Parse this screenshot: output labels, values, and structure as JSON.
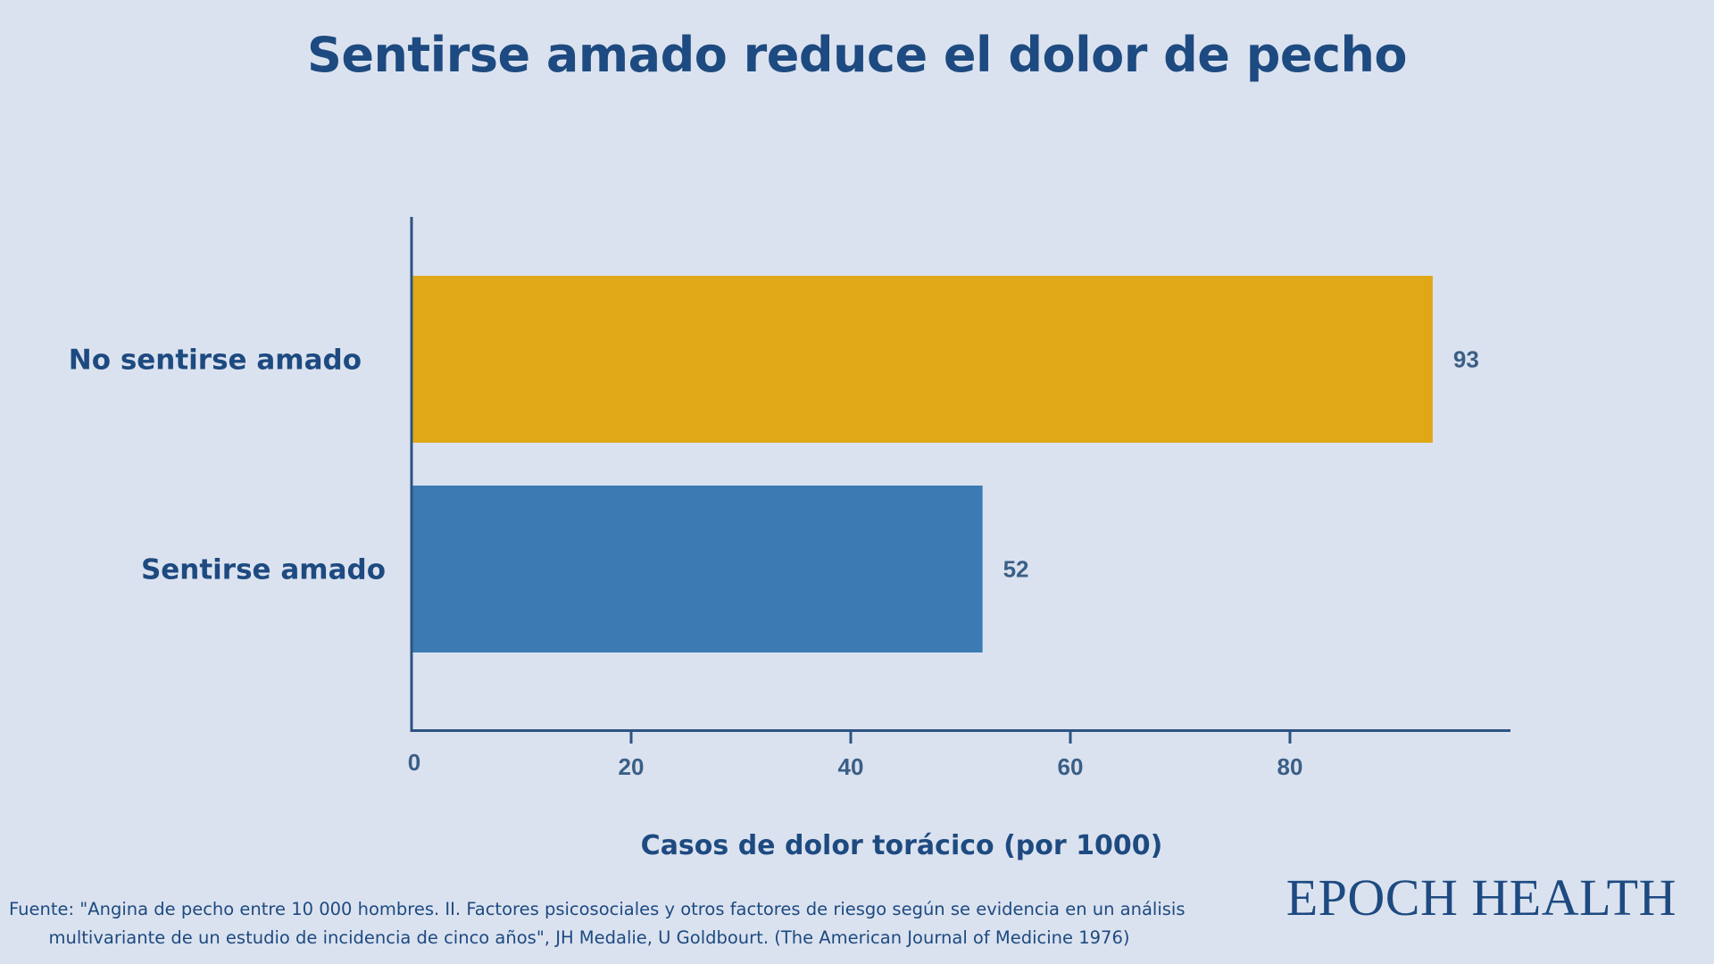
{
  "title": "Sentirse amado reduce el dolor de pecho",
  "chart_data": {
    "type": "bar",
    "orientation": "horizontal",
    "title": "Sentirse amado reduce el dolor de pecho",
    "categories": [
      "No sentirse amado",
      "Sentirse amado"
    ],
    "values": [
      93,
      52
    ],
    "bar_colors": [
      "#e0a817",
      "#3b7ab3"
    ],
    "xlabel": "Casos de dolor torácico (por 1000)",
    "ylabel": "",
    "xlim": [
      0,
      100
    ],
    "xticks": [
      0,
      20,
      40,
      60,
      80
    ],
    "xtick_labels": [
      "0",
      "20",
      "40",
      "60",
      "80"
    ],
    "value_labels": [
      "93",
      "52"
    ],
    "grid": false,
    "legend": "none"
  },
  "source": {
    "line1": "Fuente: \"Angina de pecho entre 10 000 hombres. II. Factores psicosociales y otros factores de riesgo según se evidencia en un análisis",
    "line2": "multivariante de un estudio de incidencia de cinco años\", JH Medalie, U Goldbourt. (The American Journal of Medicine 1976)"
  },
  "brand": "EPOCH HEALTH",
  "colors": {
    "background": "#dbe2ef",
    "text": "#1d4a80",
    "axis": "#2c5383",
    "tick_text": "#3a5f86"
  }
}
